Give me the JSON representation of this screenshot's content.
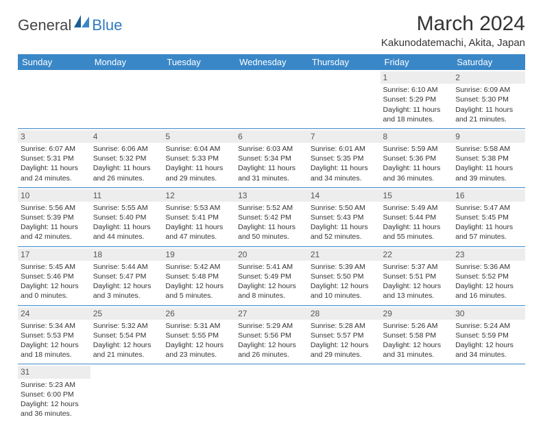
{
  "logo": {
    "word1": "General",
    "word2": "Blue"
  },
  "title": "March 2024",
  "location": "Kakunodatemachi, Akita, Japan",
  "dayHeaders": [
    "Sunday",
    "Monday",
    "Tuesday",
    "Wednesday",
    "Thursday",
    "Friday",
    "Saturday"
  ],
  "colors": {
    "headerBg": "#3a87c8",
    "headerText": "#ffffff",
    "dayNumBg": "#ededed",
    "borderColor": "#3a87c8",
    "logoBlue": "#2f7ac0"
  },
  "weeks": [
    [
      {
        "n": "",
        "empty": true
      },
      {
        "n": "",
        "empty": true
      },
      {
        "n": "",
        "empty": true
      },
      {
        "n": "",
        "empty": true
      },
      {
        "n": "",
        "empty": true
      },
      {
        "n": "1",
        "sr": "Sunrise: 6:10 AM",
        "ss": "Sunset: 5:29 PM",
        "dl1": "Daylight: 11 hours",
        "dl2": "and 18 minutes."
      },
      {
        "n": "2",
        "sr": "Sunrise: 6:09 AM",
        "ss": "Sunset: 5:30 PM",
        "dl1": "Daylight: 11 hours",
        "dl2": "and 21 minutes."
      }
    ],
    [
      {
        "n": "3",
        "sr": "Sunrise: 6:07 AM",
        "ss": "Sunset: 5:31 PM",
        "dl1": "Daylight: 11 hours",
        "dl2": "and 24 minutes."
      },
      {
        "n": "4",
        "sr": "Sunrise: 6:06 AM",
        "ss": "Sunset: 5:32 PM",
        "dl1": "Daylight: 11 hours",
        "dl2": "and 26 minutes."
      },
      {
        "n": "5",
        "sr": "Sunrise: 6:04 AM",
        "ss": "Sunset: 5:33 PM",
        "dl1": "Daylight: 11 hours",
        "dl2": "and 29 minutes."
      },
      {
        "n": "6",
        "sr": "Sunrise: 6:03 AM",
        "ss": "Sunset: 5:34 PM",
        "dl1": "Daylight: 11 hours",
        "dl2": "and 31 minutes."
      },
      {
        "n": "7",
        "sr": "Sunrise: 6:01 AM",
        "ss": "Sunset: 5:35 PM",
        "dl1": "Daylight: 11 hours",
        "dl2": "and 34 minutes."
      },
      {
        "n": "8",
        "sr": "Sunrise: 5:59 AM",
        "ss": "Sunset: 5:36 PM",
        "dl1": "Daylight: 11 hours",
        "dl2": "and 36 minutes."
      },
      {
        "n": "9",
        "sr": "Sunrise: 5:58 AM",
        "ss": "Sunset: 5:38 PM",
        "dl1": "Daylight: 11 hours",
        "dl2": "and 39 minutes."
      }
    ],
    [
      {
        "n": "10",
        "sr": "Sunrise: 5:56 AM",
        "ss": "Sunset: 5:39 PM",
        "dl1": "Daylight: 11 hours",
        "dl2": "and 42 minutes."
      },
      {
        "n": "11",
        "sr": "Sunrise: 5:55 AM",
        "ss": "Sunset: 5:40 PM",
        "dl1": "Daylight: 11 hours",
        "dl2": "and 44 minutes."
      },
      {
        "n": "12",
        "sr": "Sunrise: 5:53 AM",
        "ss": "Sunset: 5:41 PM",
        "dl1": "Daylight: 11 hours",
        "dl2": "and 47 minutes."
      },
      {
        "n": "13",
        "sr": "Sunrise: 5:52 AM",
        "ss": "Sunset: 5:42 PM",
        "dl1": "Daylight: 11 hours",
        "dl2": "and 50 minutes."
      },
      {
        "n": "14",
        "sr": "Sunrise: 5:50 AM",
        "ss": "Sunset: 5:43 PM",
        "dl1": "Daylight: 11 hours",
        "dl2": "and 52 minutes."
      },
      {
        "n": "15",
        "sr": "Sunrise: 5:49 AM",
        "ss": "Sunset: 5:44 PM",
        "dl1": "Daylight: 11 hours",
        "dl2": "and 55 minutes."
      },
      {
        "n": "16",
        "sr": "Sunrise: 5:47 AM",
        "ss": "Sunset: 5:45 PM",
        "dl1": "Daylight: 11 hours",
        "dl2": "and 57 minutes."
      }
    ],
    [
      {
        "n": "17",
        "sr": "Sunrise: 5:45 AM",
        "ss": "Sunset: 5:46 PM",
        "dl1": "Daylight: 12 hours",
        "dl2": "and 0 minutes."
      },
      {
        "n": "18",
        "sr": "Sunrise: 5:44 AM",
        "ss": "Sunset: 5:47 PM",
        "dl1": "Daylight: 12 hours",
        "dl2": "and 3 minutes."
      },
      {
        "n": "19",
        "sr": "Sunrise: 5:42 AM",
        "ss": "Sunset: 5:48 PM",
        "dl1": "Daylight: 12 hours",
        "dl2": "and 5 minutes."
      },
      {
        "n": "20",
        "sr": "Sunrise: 5:41 AM",
        "ss": "Sunset: 5:49 PM",
        "dl1": "Daylight: 12 hours",
        "dl2": "and 8 minutes."
      },
      {
        "n": "21",
        "sr": "Sunrise: 5:39 AM",
        "ss": "Sunset: 5:50 PM",
        "dl1": "Daylight: 12 hours",
        "dl2": "and 10 minutes."
      },
      {
        "n": "22",
        "sr": "Sunrise: 5:37 AM",
        "ss": "Sunset: 5:51 PM",
        "dl1": "Daylight: 12 hours",
        "dl2": "and 13 minutes."
      },
      {
        "n": "23",
        "sr": "Sunrise: 5:36 AM",
        "ss": "Sunset: 5:52 PM",
        "dl1": "Daylight: 12 hours",
        "dl2": "and 16 minutes."
      }
    ],
    [
      {
        "n": "24",
        "sr": "Sunrise: 5:34 AM",
        "ss": "Sunset: 5:53 PM",
        "dl1": "Daylight: 12 hours",
        "dl2": "and 18 minutes."
      },
      {
        "n": "25",
        "sr": "Sunrise: 5:32 AM",
        "ss": "Sunset: 5:54 PM",
        "dl1": "Daylight: 12 hours",
        "dl2": "and 21 minutes."
      },
      {
        "n": "26",
        "sr": "Sunrise: 5:31 AM",
        "ss": "Sunset: 5:55 PM",
        "dl1": "Daylight: 12 hours",
        "dl2": "and 23 minutes."
      },
      {
        "n": "27",
        "sr": "Sunrise: 5:29 AM",
        "ss": "Sunset: 5:56 PM",
        "dl1": "Daylight: 12 hours",
        "dl2": "and 26 minutes."
      },
      {
        "n": "28",
        "sr": "Sunrise: 5:28 AM",
        "ss": "Sunset: 5:57 PM",
        "dl1": "Daylight: 12 hours",
        "dl2": "and 29 minutes."
      },
      {
        "n": "29",
        "sr": "Sunrise: 5:26 AM",
        "ss": "Sunset: 5:58 PM",
        "dl1": "Daylight: 12 hours",
        "dl2": "and 31 minutes."
      },
      {
        "n": "30",
        "sr": "Sunrise: 5:24 AM",
        "ss": "Sunset: 5:59 PM",
        "dl1": "Daylight: 12 hours",
        "dl2": "and 34 minutes."
      }
    ],
    [
      {
        "n": "31",
        "sr": "Sunrise: 5:23 AM",
        "ss": "Sunset: 6:00 PM",
        "dl1": "Daylight: 12 hours",
        "dl2": "and 36 minutes."
      },
      {
        "n": "",
        "empty": true
      },
      {
        "n": "",
        "empty": true
      },
      {
        "n": "",
        "empty": true
      },
      {
        "n": "",
        "empty": true
      },
      {
        "n": "",
        "empty": true
      },
      {
        "n": "",
        "empty": true
      }
    ]
  ]
}
